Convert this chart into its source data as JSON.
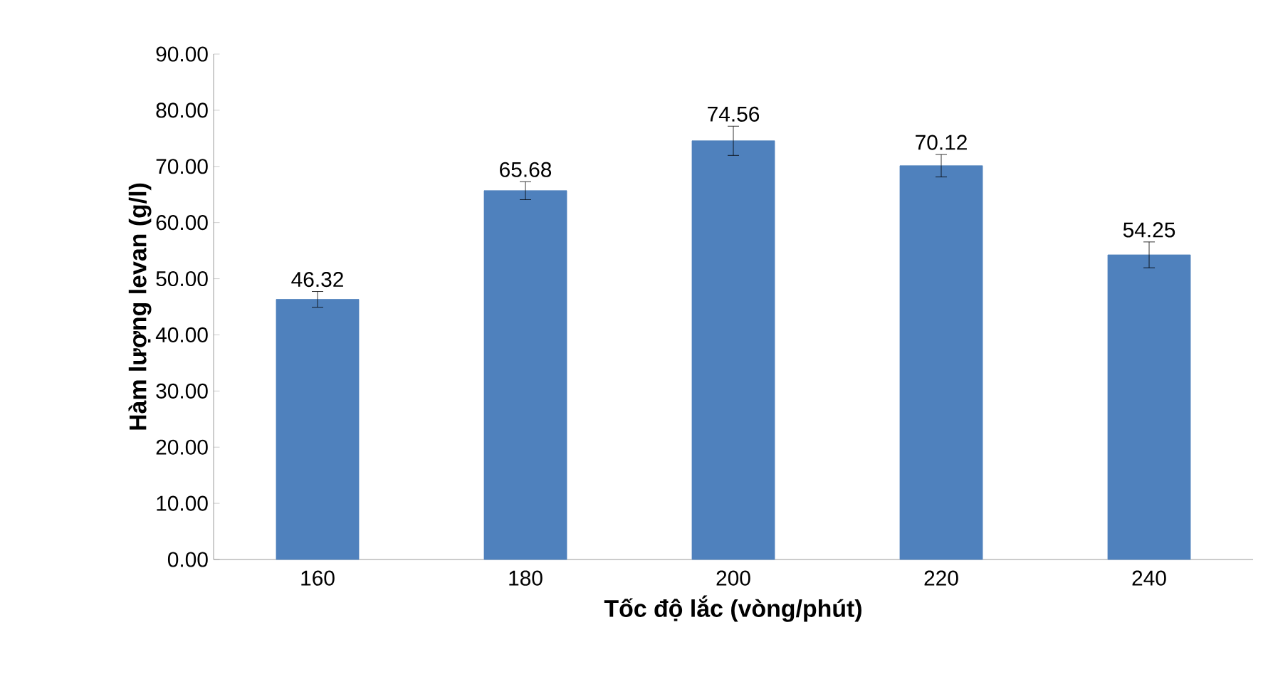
{
  "chart_data": {
    "type": "bar",
    "xlabel": "Tốc độ lắc (vòng/phút)",
    "ylabel": "Hàm lượng levan (g/l)",
    "categories": [
      "160",
      "180",
      "200",
      "220",
      "240"
    ],
    "values": [
      46.32,
      65.68,
      74.56,
      70.12,
      54.25
    ],
    "errors": [
      1.4,
      1.6,
      2.6,
      2.0,
      2.3
    ],
    "color": "#4f81bd",
    "data_labels": true,
    "ylim": [
      0,
      90
    ],
    "yticks": [
      {
        "value": 0,
        "label": "0.00"
      },
      {
        "value": 10,
        "label": "10.00"
      },
      {
        "value": 20,
        "label": "20.00"
      },
      {
        "value": 30,
        "label": "30.00"
      },
      {
        "value": 40,
        "label": "40.00"
      },
      {
        "value": 50,
        "label": "50.00"
      },
      {
        "value": 60,
        "label": "60.00"
      },
      {
        "value": 70,
        "label": "70.00"
      },
      {
        "value": 80,
        "label": "80.00"
      },
      {
        "value": 90,
        "label": "90.00"
      }
    ],
    "grid": false
  }
}
